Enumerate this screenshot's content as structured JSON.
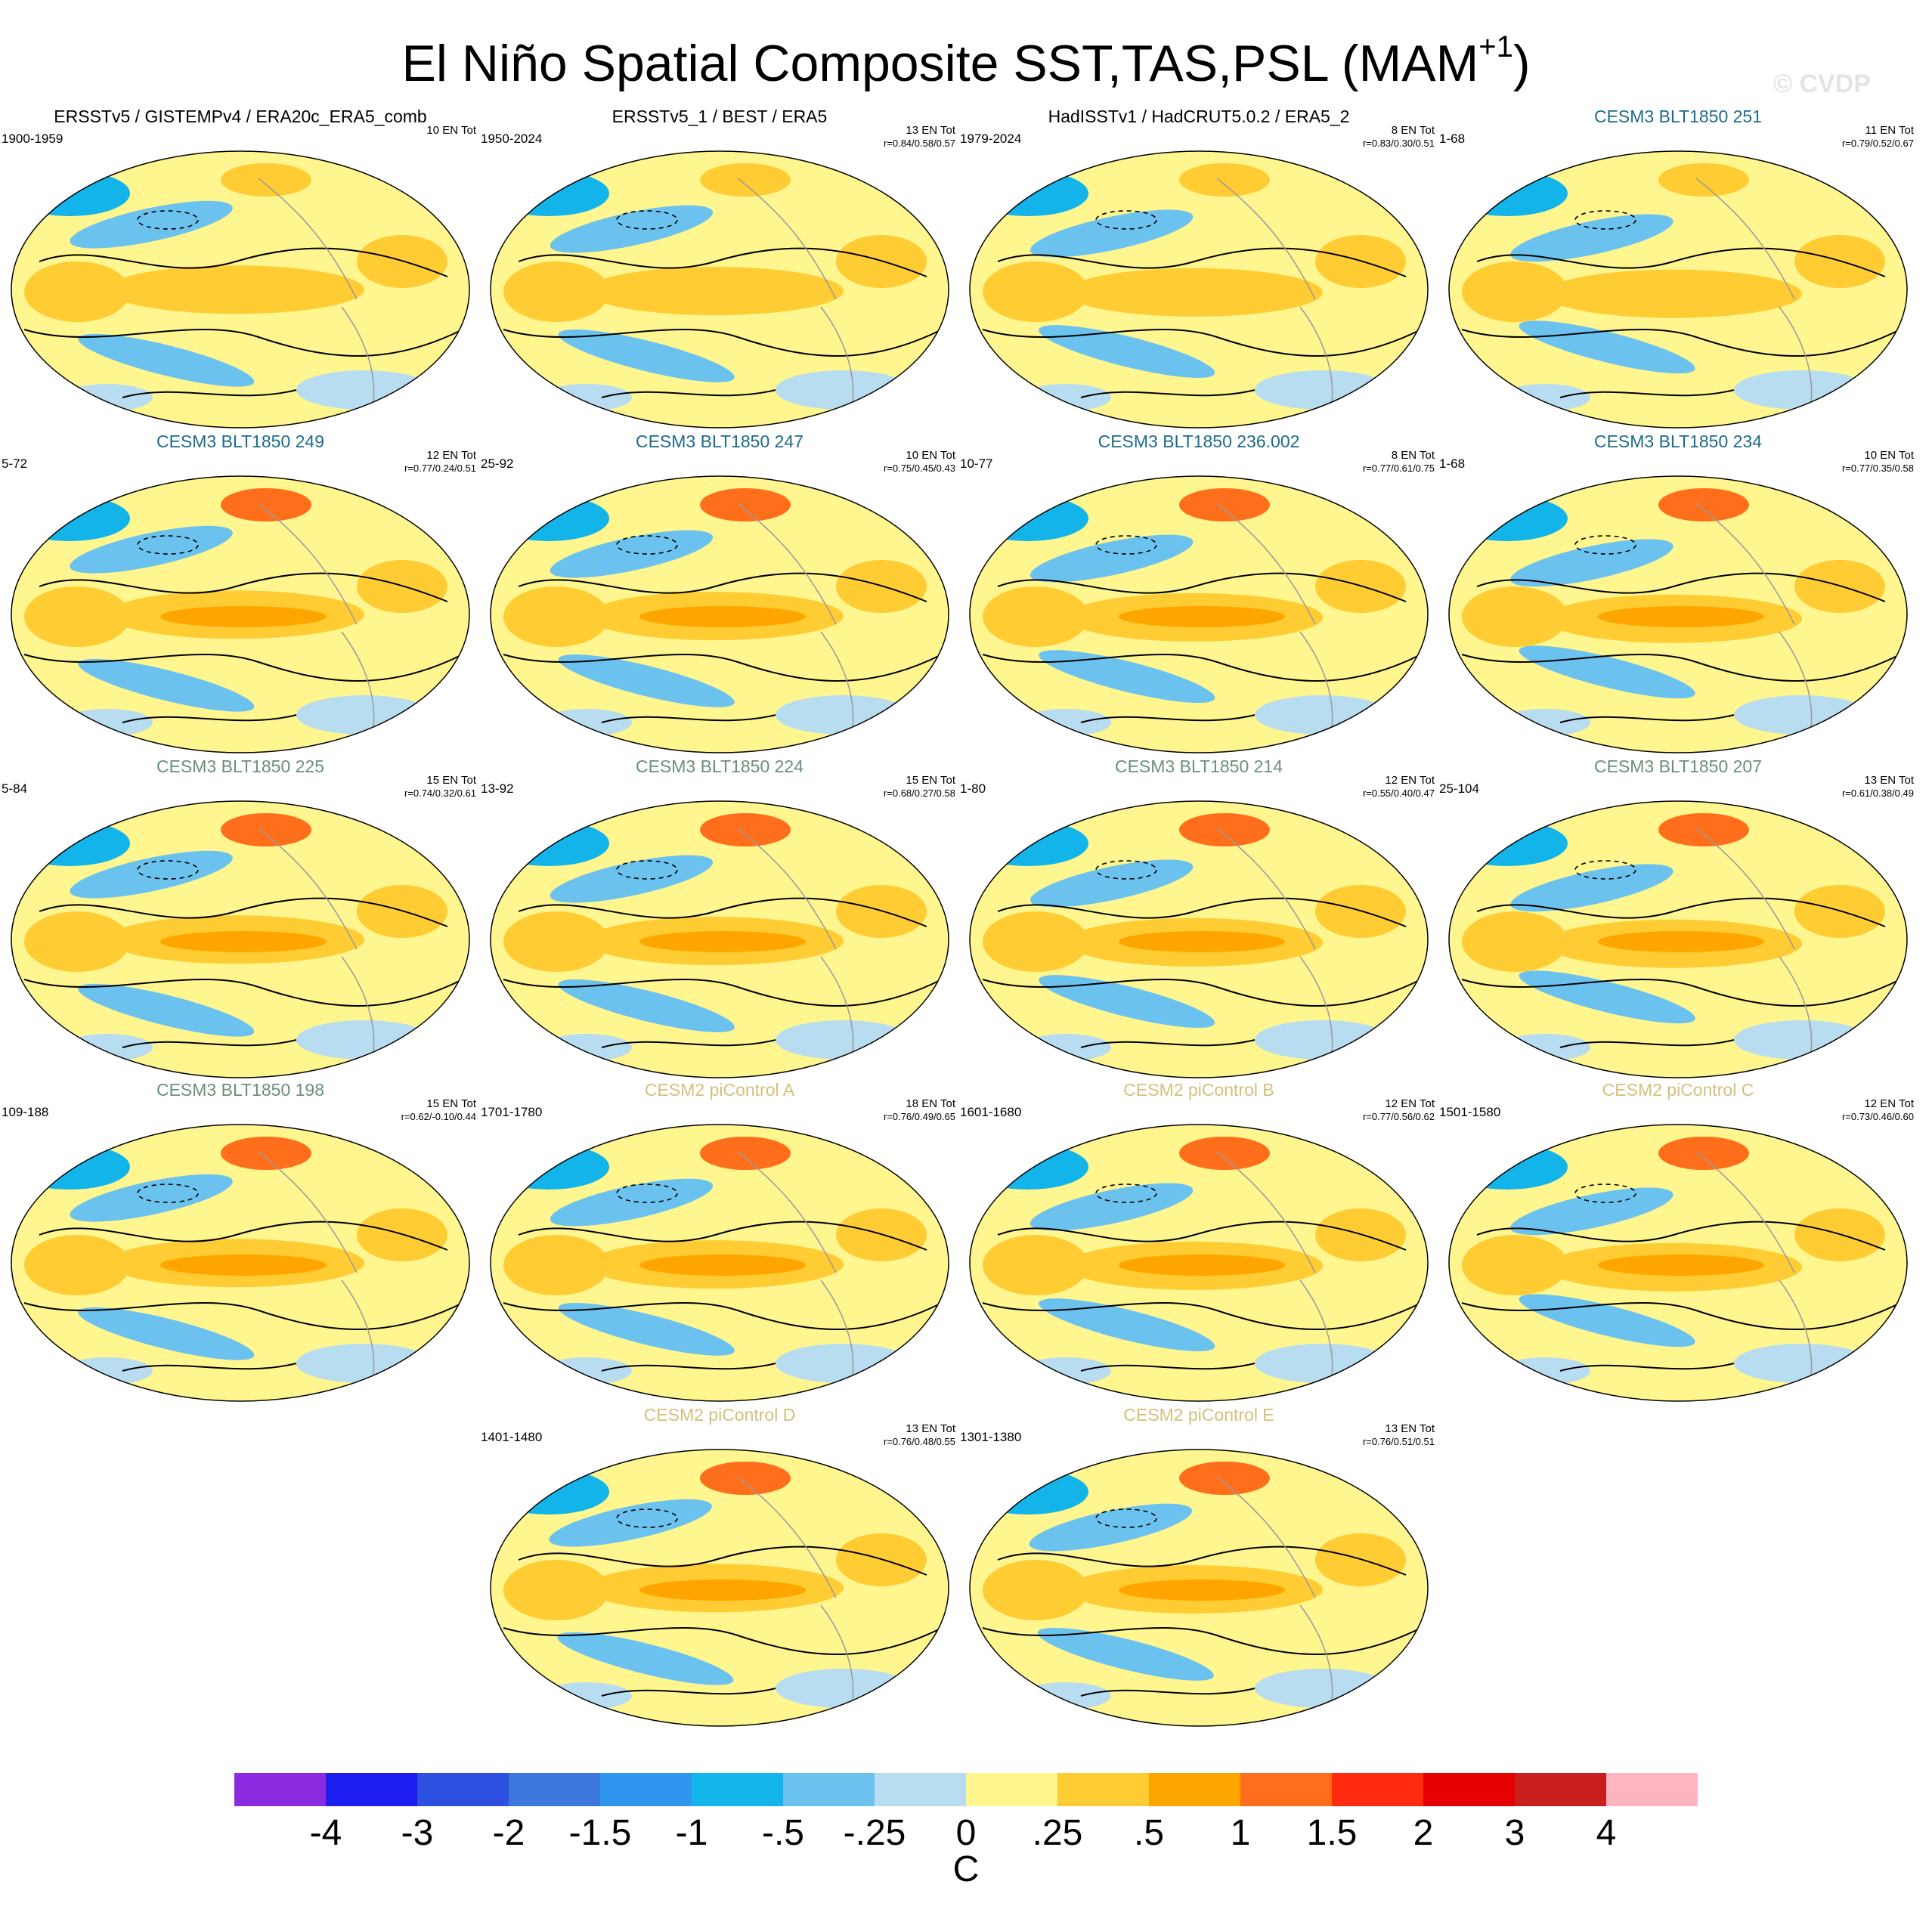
{
  "figure": {
    "title_main": "El Niño Spatial Composite SST,TAS,PSL (MAM",
    "title_sup": "+1",
    "title_end": ")",
    "copyright": "© CVDP"
  },
  "panels": [
    {
      "title": "ERSSTv5 / GISTEMPv4 / ERA20c_ERA5_comb",
      "style": "obs",
      "years": "1900-1959",
      "stat1": "10 EN Tot",
      "stat2": ""
    },
    {
      "title": "ERSSTv5_1 / BEST / ERA5",
      "style": "obs",
      "years": "1950-2024",
      "stat1": "13 EN Tot",
      "stat2": "r=0.84/0.58/0.57"
    },
    {
      "title": "HadISSTv1 / HadCRUT5.0.2 / ERA5_2",
      "style": "obs",
      "years": "1979-2024",
      "stat1": "8 EN Tot",
      "stat2": "r=0.83/0.30/0.51"
    },
    {
      "title": "CESM3 BLT1850 251",
      "style": "c3a",
      "years": "1-68",
      "stat1": "11 EN Tot",
      "stat2": "r=0.79/0.52/0.67"
    },
    {
      "title": "CESM3 BLT1850 249",
      "style": "c3a",
      "years": "5-72",
      "stat1": "12 EN Tot",
      "stat2": "r=0.77/0.24/0.51"
    },
    {
      "title": "CESM3 BLT1850 247",
      "style": "c3a",
      "years": "25-92",
      "stat1": "10 EN Tot",
      "stat2": "r=0.75/0.45/0.43"
    },
    {
      "title": "CESM3 BLT1850 236.002",
      "style": "c3a",
      "years": "10-77",
      "stat1": "8 EN Tot",
      "stat2": "r=0.77/0.61/0.75"
    },
    {
      "title": "CESM3 BLT1850 234",
      "style": "c3a",
      "years": "1-68",
      "stat1": "10 EN Tot",
      "stat2": "r=0.77/0.35/0.58"
    },
    {
      "title": "CESM3 BLT1850 225",
      "style": "c3b",
      "years": "5-84",
      "stat1": "15 EN Tot",
      "stat2": "r=0.74/0.32/0.61"
    },
    {
      "title": "CESM3 BLT1850 224",
      "style": "c3b",
      "years": "13-92",
      "stat1": "15 EN Tot",
      "stat2": "r=0.68/0.27/0.58"
    },
    {
      "title": "CESM3 BLT1850 214",
      "style": "c3b",
      "years": "1-80",
      "stat1": "12 EN Tot",
      "stat2": "r=0.55/0.40/0.47"
    },
    {
      "title": "CESM3 BLT1850 207",
      "style": "c3b",
      "years": "25-104",
      "stat1": "13 EN Tot",
      "stat2": "r=0.61/0.38/0.49"
    },
    {
      "title": "CESM3 BLT1850 198",
      "style": "c3b",
      "years": "109-188",
      "stat1": "15 EN Tot",
      "stat2": "r=0.62/-0.10/0.44"
    },
    {
      "title": "CESM2 piControl A",
      "style": "c2",
      "years": "1701-1780",
      "stat1": "18 EN Tot",
      "stat2": "r=0.76/0.49/0.65"
    },
    {
      "title": "CESM2 piControl B",
      "style": "c2",
      "years": "1601-1680",
      "stat1": "12 EN Tot",
      "stat2": "r=0.77/0.56/0.62"
    },
    {
      "title": "CESM2 piControl C",
      "style": "c2",
      "years": "1501-1580",
      "stat1": "12 EN Tot",
      "stat2": "r=0.73/0.46/0.60"
    },
    {
      "title": "CESM2 piControl D",
      "style": "c2",
      "years": "1401-1480",
      "stat1": "13 EN Tot",
      "stat2": "r=0.76/0.48/0.55"
    },
    {
      "title": "CESM2 piControl E",
      "style": "c2",
      "years": "1301-1380",
      "stat1": "13 EN Tot",
      "stat2": "r=0.76/0.51/0.51"
    }
  ],
  "colorbar": {
    "colors": [
      "#8a2be2",
      "#1e1ef0",
      "#2e50e0",
      "#3c78dc",
      "#2f96f0",
      "#12b4ea",
      "#6cc2ee",
      "#b8dcf0",
      "#fff690",
      "#ffcc33",
      "#ffa500",
      "#ff6e1a",
      "#ff2a10",
      "#e60000",
      "#c81e1e",
      "#ffb4c0"
    ],
    "labels": [
      "-4",
      "-3",
      "-2",
      "-1.5",
      "-1",
      "-.5",
      "-.25",
      "0",
      ".25",
      ".5",
      "1",
      "1.5",
      "2",
      "3",
      "4"
    ],
    "unit": "C"
  },
  "colors": {
    "obs_title": "#000000",
    "cesm3_a_title": "#1c6b8c",
    "cesm3_b_title": "#6a8f7a",
    "cesm2_title": "#d4c07a",
    "map_base": "#fff690",
    "watermark": "#e4e4e4"
  }
}
